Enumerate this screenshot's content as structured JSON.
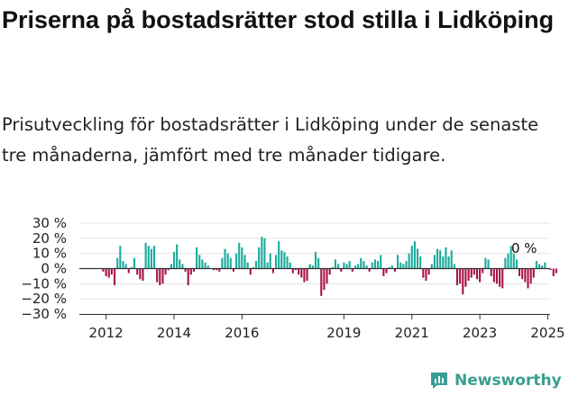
{
  "header": {
    "title": "Priserna på bostadsrätter stod stilla i Lidköping",
    "subtitle": "Prisutveckling för bostadsrätter i Lidköping under de senaste tre månaderna, jämfört med tre månader tidigare."
  },
  "brand": {
    "name": "Newsworthy",
    "color": "#3a9d93",
    "icon": "newsworthy-logo-icon"
  },
  "colors": {
    "positive": "#1aab9b",
    "negative": "#a8134a",
    "axis": "#333333",
    "grid": "#e3e3e3"
  },
  "chart_data": {
    "type": "bar",
    "x_start": "2011-12",
    "x_step": "month",
    "x_ticks": [
      "2012",
      "2014",
      "2016",
      "2019",
      "2021",
      "2023",
      "2025"
    ],
    "y_ticks": [
      "30 %",
      "20 %",
      "10 %",
      "0 %",
      "−10 %",
      "−20 %",
      "−30 %"
    ],
    "ylim": [
      -30,
      30
    ],
    "grid": true,
    "annotation": "0 %",
    "values": [
      -2,
      -5,
      -6,
      -4,
      -11,
      7,
      15,
      5,
      3,
      -3,
      1,
      7,
      -4,
      -7,
      -8,
      17,
      15,
      13,
      15,
      -9,
      -11,
      -10,
      -4,
      -1,
      3,
      11,
      16,
      6,
      3,
      -2,
      -11,
      -4,
      -2,
      14,
      9,
      6,
      4,
      2,
      0,
      -1,
      -1,
      -2,
      7,
      13,
      10,
      7,
      -2,
      10,
      17,
      14,
      9,
      4,
      -4,
      1,
      5,
      14,
      21,
      20,
      4,
      10,
      -3,
      9,
      18,
      12,
      11,
      8,
      4,
      -3,
      -1,
      -4,
      -6,
      -9,
      -8,
      3,
      2,
      11,
      7,
      -18,
      -14,
      -10,
      -4,
      1,
      6,
      3,
      -2,
      4,
      3,
      5,
      -2,
      2,
      3,
      7,
      5,
      2,
      -2,
      4,
      6,
      5,
      9,
      -5,
      -3,
      1,
      2,
      -2,
      9,
      4,
      3,
      5,
      10,
      15,
      18,
      13,
      8,
      -6,
      -8,
      -4,
      3,
      9,
      13,
      12,
      8,
      14,
      8,
      12,
      3,
      -11,
      -10,
      -17,
      -12,
      -8,
      -6,
      -4,
      -7,
      -9,
      -3,
      7,
      6,
      -5,
      -9,
      -10,
      -12,
      -13,
      7,
      10,
      15,
      10,
      6,
      -5,
      -7,
      -9,
      -13,
      -10,
      -6,
      5,
      3,
      2,
      4,
      0,
      -1,
      -5,
      -3
    ]
  }
}
